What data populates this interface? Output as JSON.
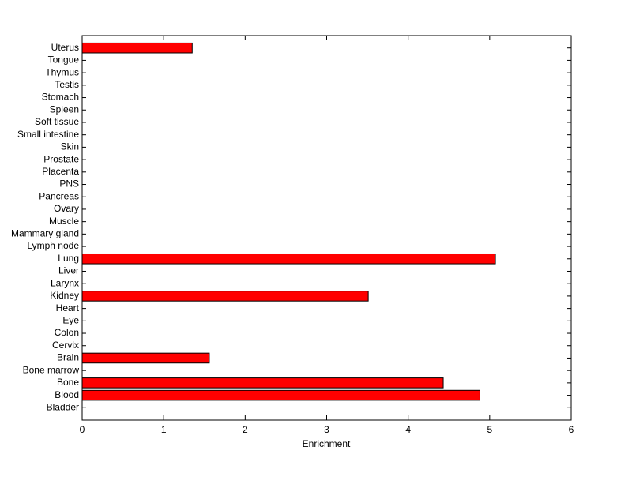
{
  "chart_data": {
    "type": "barh",
    "categories": [
      "Bladder",
      "Blood",
      "Bone",
      "Bone marrow",
      "Brain",
      "Cervix",
      "Colon",
      "Eye",
      "Heart",
      "Kidney",
      "Larynx",
      "Liver",
      "Lung",
      "Lymph node",
      "Mammary gland",
      "Muscle",
      "Ovary",
      "Pancreas",
      "PNS",
      "Placenta",
      "Prostate",
      "Skin",
      "Small intestine",
      "Soft tissue",
      "Spleen",
      "Stomach",
      "Testis",
      "Thymus",
      "Tongue",
      "Uterus"
    ],
    "values": [
      0,
      4.88,
      4.43,
      0,
      1.56,
      0,
      0,
      0,
      0,
      3.51,
      0,
      0,
      5.07,
      0,
      0,
      0,
      0,
      0,
      0,
      0,
      0,
      0,
      0,
      0,
      0,
      0,
      0,
      0,
      0,
      1.35
    ],
    "color": "#ff0000",
    "xlabel": "Enrichment",
    "xlim": [
      0,
      6
    ],
    "xticks": [
      0,
      1,
      2,
      3,
      4,
      5,
      6
    ]
  }
}
